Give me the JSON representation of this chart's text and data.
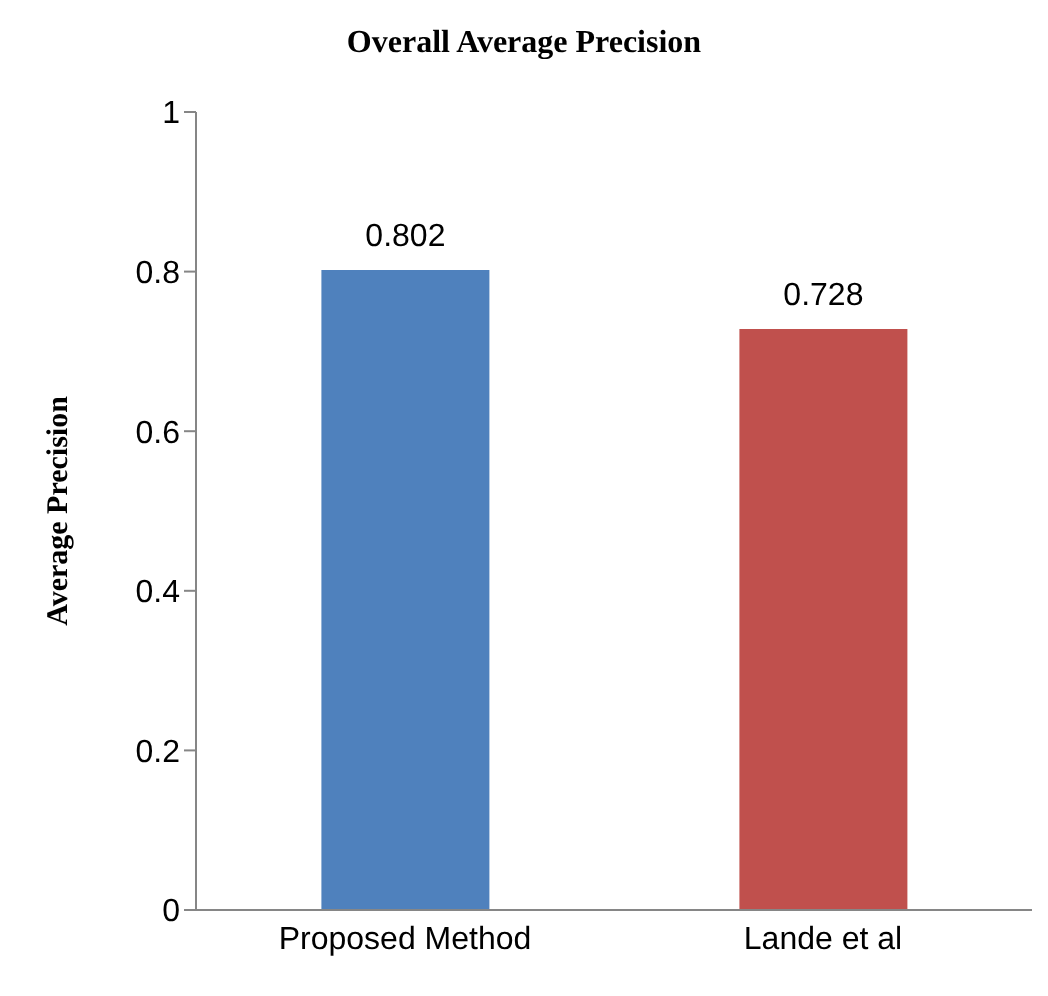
{
  "chart_data": {
    "type": "bar",
    "title": "Overall Average Precision",
    "ylabel": "Average Precision",
    "categories": [
      "Proposed Method",
      "Lande et al"
    ],
    "values": [
      0.802,
      0.728
    ],
    "colors": [
      "#4f81bd",
      "#c0504d"
    ],
    "ylim": [
      0,
      1
    ],
    "yticks": [
      0,
      0.2,
      0.4,
      0.6,
      0.8,
      1
    ],
    "data_labels": true,
    "grid": false,
    "legend": false
  }
}
